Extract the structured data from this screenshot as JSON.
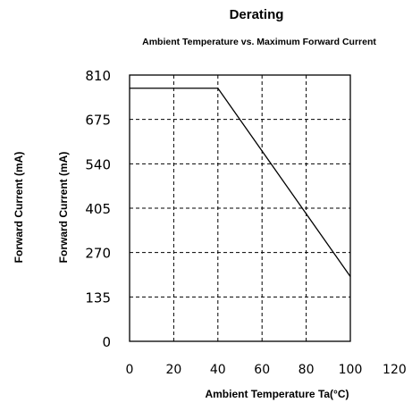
{
  "chart_data": {
    "type": "line",
    "title": "Derating",
    "subtitle": "Ambient Temperature vs. Maximum Forward Current",
    "xlabel": "Ambient Temperature Ta(°C)",
    "ylabel": "Forward Current (mA)",
    "ylabel_outer": "Forward Current (mA)",
    "xlim": [
      0,
      120
    ],
    "ylim": [
      0,
      810
    ],
    "x_ticks": [
      0,
      20,
      40,
      60,
      80,
      100,
      120
    ],
    "y_ticks": [
      0,
      135,
      270,
      405,
      540,
      675,
      810
    ],
    "grid": true,
    "series": [
      {
        "x": [
          0,
          40,
          100
        ],
        "values": [
          770,
          770,
          197
        ]
      }
    ]
  }
}
